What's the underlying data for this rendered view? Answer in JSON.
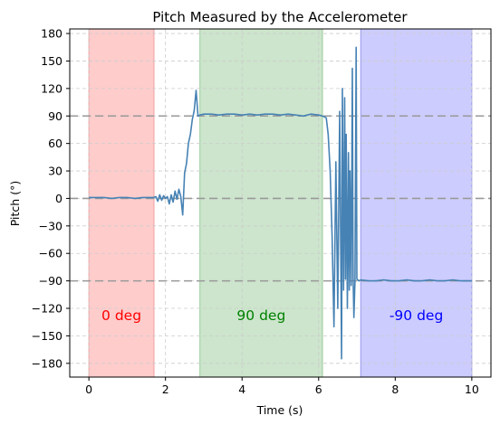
{
  "chart_data": {
    "type": "line",
    "title": "Pitch Measured by the Accelerometer",
    "xlabel": "Time (s)",
    "ylabel": "Pitch (°)",
    "xlim": [
      -0.5,
      10.5
    ],
    "ylim": [
      -195,
      185
    ],
    "x_ticks": [
      0,
      2,
      4,
      6,
      8,
      10
    ],
    "x_tick_labels": [
      "0",
      "2",
      "4",
      "6",
      "8",
      "10"
    ],
    "y_ticks": [
      180,
      150,
      120,
      90,
      60,
      30,
      0,
      -30,
      -60,
      -90,
      -120,
      -150,
      -180
    ],
    "y_tick_labels": [
      "180",
      "150",
      "120",
      "90",
      "60",
      "30",
      "0",
      "−30",
      "−60",
      "−90",
      "−120",
      "−150",
      "−180"
    ],
    "grid": true,
    "reference_lines": [
      {
        "y": 90,
        "color": "#999999"
      },
      {
        "y": 0,
        "color": "#999999"
      },
      {
        "y": -90,
        "color": "#999999"
      }
    ],
    "regions": [
      {
        "x_start": 0.0,
        "x_end": 1.7,
        "label": "0 deg",
        "fill": "#ffcccc",
        "edge": "#f0a0a0",
        "text_color": "#ff0000",
        "label_x": 0.85
      },
      {
        "x_start": 2.9,
        "x_end": 6.1,
        "label": "90 deg",
        "fill": "#cce5cc",
        "edge": "#99cc99",
        "text_color": "#008000",
        "label_x": 4.5
      },
      {
        "x_start": 7.1,
        "x_end": 10.0,
        "label": "-90 deg",
        "fill": "#ccccff",
        "edge": "#9999ee",
        "text_color": "#0000ff",
        "label_x": 8.55
      }
    ],
    "region_label_y": -128,
    "series": [
      {
        "color": "#4682b4",
        "x": [
          0.0,
          0.2,
          0.4,
          0.6,
          0.8,
          1.0,
          1.2,
          1.4,
          1.6,
          1.7,
          1.75,
          1.8,
          1.85,
          1.9,
          1.95,
          2.0,
          2.05,
          2.1,
          2.15,
          2.2,
          2.25,
          2.3,
          2.35,
          2.4,
          2.45,
          2.5,
          2.55,
          2.6,
          2.65,
          2.7,
          2.75,
          2.8,
          2.85,
          2.9,
          3.0,
          3.2,
          3.4,
          3.6,
          3.8,
          4.0,
          4.2,
          4.4,
          4.6,
          4.8,
          5.0,
          5.2,
          5.4,
          5.6,
          5.8,
          6.0,
          6.1,
          6.2,
          6.25,
          6.3,
          6.35,
          6.4,
          6.45,
          6.5,
          6.55,
          6.6,
          6.62,
          6.65,
          6.68,
          6.7,
          6.72,
          6.75,
          6.78,
          6.8,
          6.82,
          6.85,
          6.88,
          6.9,
          6.92,
          6.95,
          6.98,
          7.0,
          7.05,
          7.1,
          7.3,
          7.5,
          7.7,
          7.9,
          8.1,
          8.3,
          8.5,
          8.7,
          8.9,
          9.1,
          9.3,
          9.5,
          9.7,
          9.9,
          10.0
        ],
        "y": [
          1,
          1,
          1,
          0,
          1,
          1,
          0,
          1,
          1,
          1,
          2,
          -3,
          4,
          -2,
          3,
          0,
          2,
          -6,
          4,
          -4,
          8,
          -1,
          10,
          2,
          -18,
          28,
          38,
          60,
          70,
          86,
          96,
          118,
          90,
          91,
          92,
          92,
          91,
          92,
          92,
          91,
          92,
          91,
          92,
          92,
          91,
          92,
          91,
          90,
          92,
          91,
          90,
          88,
          70,
          30,
          -40,
          -140,
          40,
          -120,
          95,
          -175,
          120,
          -100,
          110,
          -88,
          70,
          -120,
          50,
          -100,
          30,
          -95,
          142,
          -85,
          -130,
          -90,
          165,
          -88,
          -90,
          -89,
          -90,
          -90,
          -89,
          -90,
          -90,
          -89,
          -90,
          -90,
          -89,
          -90,
          -90,
          -89,
          -90,
          -90,
          -90
        ]
      }
    ]
  }
}
